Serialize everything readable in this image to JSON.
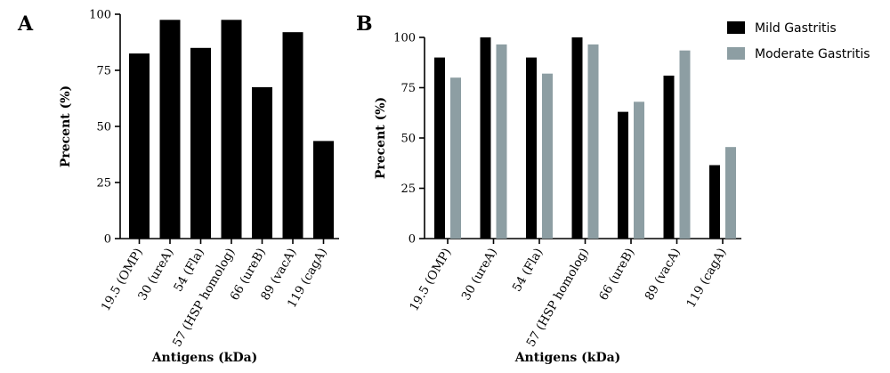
{
  "chart_data": [
    {
      "type": "bar",
      "panel_label": "A",
      "categories": [
        "19.5 (OMP)",
        "30 (ureA)",
        "54 (Fla)",
        "57 (HSP homolog)",
        "66 (ureB)",
        "89 (vacA)",
        "119 (cagA)"
      ],
      "series": [
        {
          "values": [
            82.5,
            97.5,
            85,
            97.5,
            67.5,
            92,
            43.5
          ],
          "color": "#000000"
        }
      ],
      "xlabel": "Antigens (kDa)",
      "ylabel": "Precent (%)",
      "ylim": [
        0,
        100
      ],
      "yticks": [
        0,
        25,
        50,
        75,
        100
      ],
      "grid": false,
      "legend": "none"
    },
    {
      "type": "bar",
      "panel_label": "B",
      "categories": [
        "19.5 (OMP)",
        "30 (ureA)",
        "54 (Fla)",
        "57 (HSP homolog)",
        "66 (ureB)",
        "89 (vacA)",
        "119 (cagA)"
      ],
      "series": [
        {
          "name": "Mild Gastritis",
          "values": [
            90,
            100,
            90,
            100,
            63,
            81,
            36.5
          ],
          "color": "#000000"
        },
        {
          "name": "Moderate Gastritis",
          "values": [
            80,
            96.5,
            82,
            96.5,
            68,
            93.5,
            45.5
          ],
          "color": "#8d9ea3"
        }
      ],
      "xlabel": "Antigens (kDa)",
      "ylabel": "Precent (%)",
      "ylim": [
        0,
        100
      ],
      "yticks": [
        0,
        25,
        50,
        75,
        100
      ],
      "grid": false,
      "legend": "top-right"
    }
  ]
}
